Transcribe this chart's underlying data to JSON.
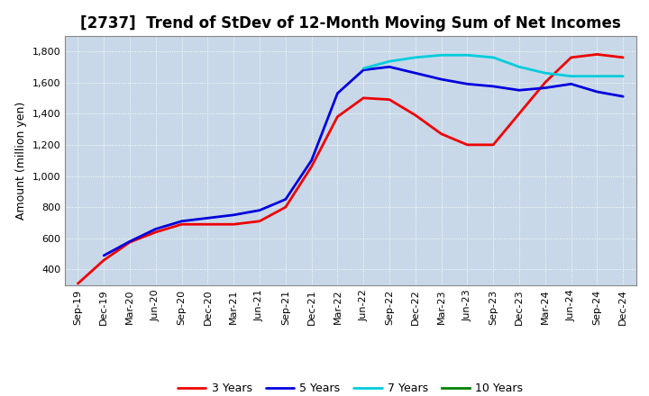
{
  "title": "[2737]  Trend of StDev of 12-Month Moving Sum of Net Incomes",
  "ylabel": "Amount (million yen)",
  "xlabel": "",
  "ylim": [
    300,
    1900
  ],
  "yticks": [
    400,
    600,
    800,
    1000,
    1200,
    1400,
    1600,
    1800
  ],
  "plot_bg_color": "#c8d8e8",
  "fig_bg_color": "#ffffff",
  "grid_color": "#ffffff",
  "title_fontsize": 12,
  "axis_fontsize": 9,
  "tick_fontsize": 8,
  "legend_fontsize": 9,
  "line_width": 2.0,
  "x_labels": [
    "Sep-19",
    "Dec-19",
    "Mar-20",
    "Jun-20",
    "Sep-20",
    "Dec-20",
    "Mar-21",
    "Jun-21",
    "Sep-21",
    "Dec-21",
    "Mar-22",
    "Jun-22",
    "Sep-22",
    "Dec-22",
    "Mar-23",
    "Jun-23",
    "Sep-23",
    "Dec-23",
    "Mar-24",
    "Jun-24",
    "Sep-24",
    "Dec-24"
  ],
  "series": {
    "3 Years": {
      "color": "#ee0000",
      "values": [
        310,
        460,
        575,
        640,
        690,
        690,
        690,
        710,
        800,
        1060,
        1380,
        1500,
        1490,
        1390,
        1270,
        1200,
        1200,
        1400,
        1600,
        1760,
        1780,
        1760
      ]
    },
    "5 Years": {
      "color": "#0000dd",
      "values": [
        null,
        490,
        580,
        660,
        710,
        730,
        750,
        780,
        850,
        1100,
        1530,
        1680,
        1700,
        1660,
        1620,
        1590,
        1575,
        1550,
        1565,
        1590,
        1540,
        1510
      ]
    },
    "7 Years": {
      "color": "#00ccdd",
      "values": [
        null,
        null,
        null,
        null,
        null,
        null,
        null,
        null,
        null,
        null,
        null,
        1690,
        1735,
        1760,
        1775,
        1775,
        1760,
        1700,
        1660,
        1640,
        1640,
        1640
      ]
    },
    "10 Years": {
      "color": "#008000",
      "values": [
        null,
        null,
        null,
        null,
        null,
        null,
        null,
        null,
        null,
        null,
        null,
        null,
        null,
        null,
        null,
        null,
        null,
        null,
        null,
        null,
        null,
        null
      ]
    }
  }
}
